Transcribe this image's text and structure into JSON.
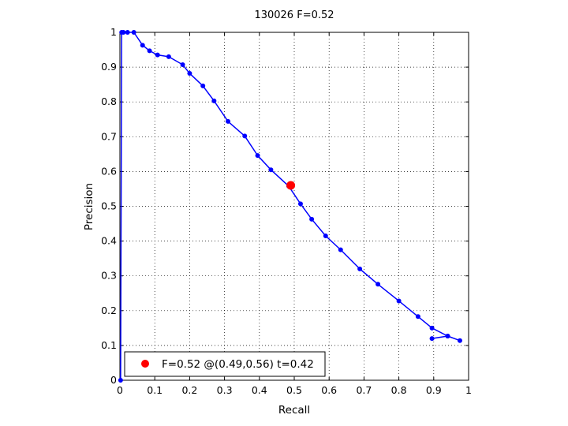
{
  "chart_data": {
    "type": "line",
    "title": "130026 F=0.52",
    "xlabel": "Recall",
    "ylabel": "Precision",
    "xlim": [
      0,
      1
    ],
    "ylim": [
      0,
      1
    ],
    "grid": true,
    "legend_position": "bottom-left",
    "x_ticks": [
      "0",
      "0.1",
      "0.2",
      "0.3",
      "0.4",
      "0.5",
      "0.6",
      "0.7",
      "0.8",
      "0.9",
      "1"
    ],
    "y_ticks": [
      "0",
      "0.1",
      "0.2",
      "0.3",
      "0.4",
      "0.5",
      "0.6",
      "0.7",
      "0.8",
      "0.9",
      "1"
    ],
    "colors": {
      "series": "#0000ff",
      "marker": "#ff0000"
    },
    "series": [
      {
        "points": [
          [
            0.895,
            0.12
          ],
          [
            0.94,
            0.127
          ],
          [
            0.975,
            0.114
          ],
          [
            0.94,
            0.127
          ],
          [
            0.895,
            0.15
          ],
          [
            0.855,
            0.183
          ],
          [
            0.8,
            0.228
          ],
          [
            0.74,
            0.276
          ],
          [
            0.688,
            0.32
          ],
          [
            0.633,
            0.375
          ],
          [
            0.59,
            0.415
          ],
          [
            0.55,
            0.463
          ],
          [
            0.518,
            0.507
          ],
          [
            0.484,
            0.558
          ],
          [
            0.433,
            0.605
          ],
          [
            0.395,
            0.646
          ],
          [
            0.358,
            0.702
          ],
          [
            0.31,
            0.744
          ],
          [
            0.27,
            0.803
          ],
          [
            0.238,
            0.846
          ],
          [
            0.2,
            0.882
          ],
          [
            0.18,
            0.907
          ],
          [
            0.14,
            0.93
          ],
          [
            0.108,
            0.935
          ],
          [
            0.085,
            0.947
          ],
          [
            0.065,
            0.963
          ],
          [
            0.04,
            1.0
          ],
          [
            0.022,
            1.0
          ],
          [
            0.01,
            1.0
          ],
          [
            0.005,
            1.0
          ],
          [
            0.002,
            0.0
          ]
        ]
      }
    ],
    "highlight": {
      "x": 0.49,
      "y": 0.56
    },
    "legend": {
      "label": "F=0.52 @(0.49,0.56) t=0.42"
    }
  }
}
